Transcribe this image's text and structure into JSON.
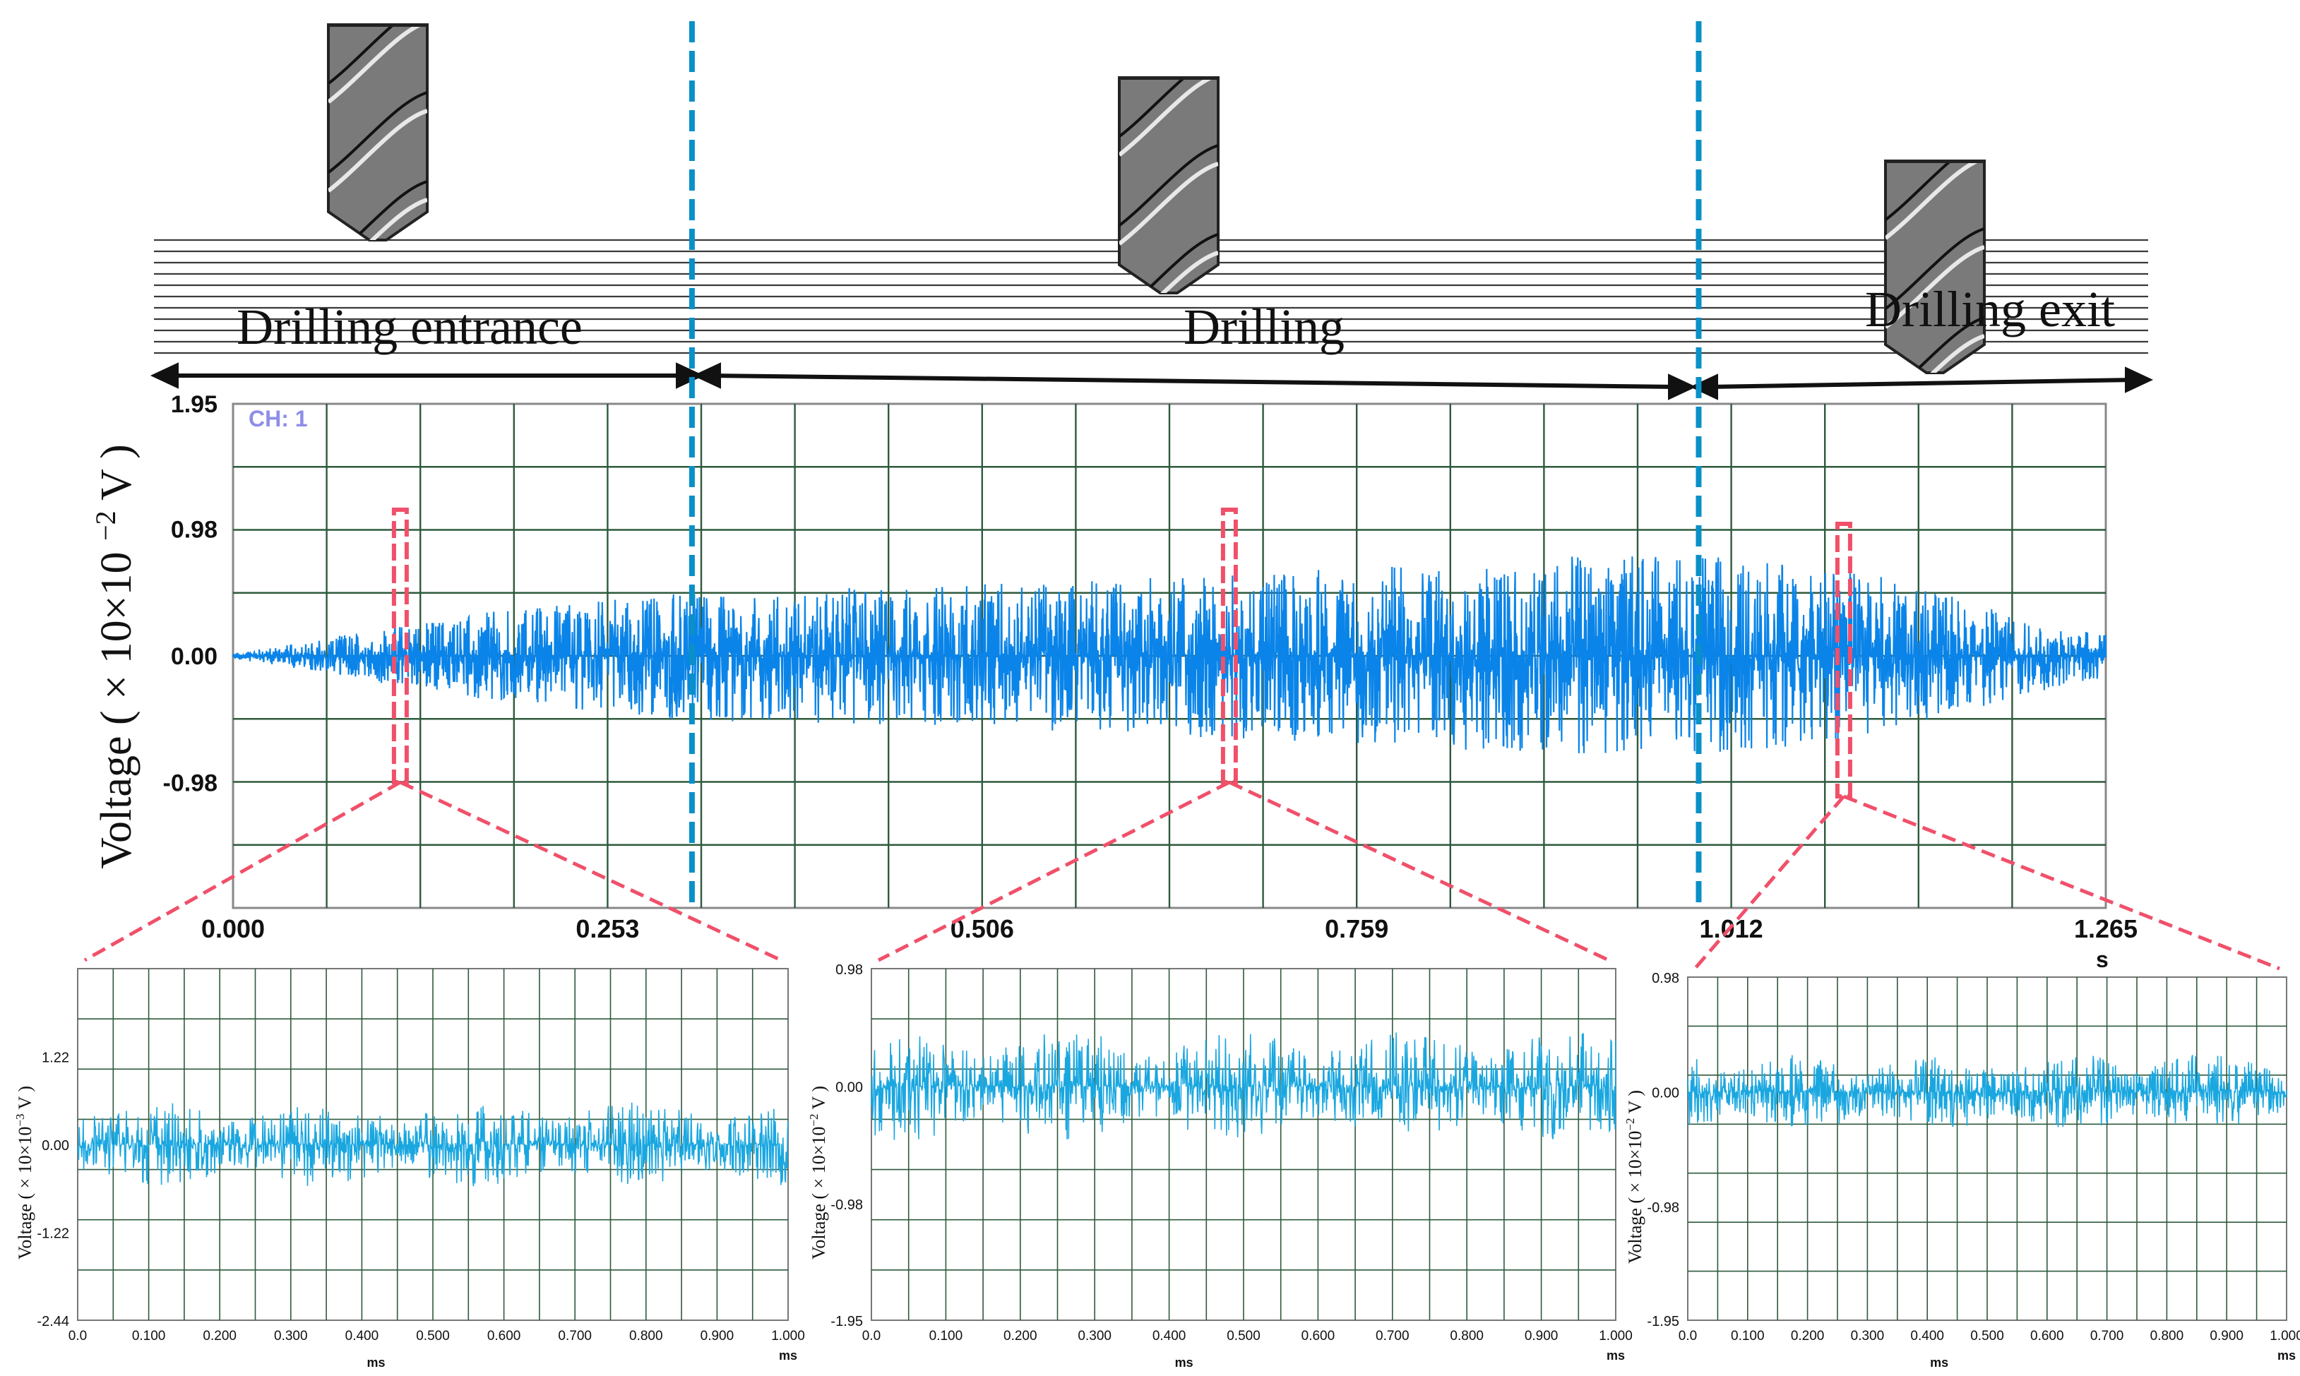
{
  "figure": {
    "stages": [
      {
        "label": "Drilling entrance",
        "x_range": [
          0.0,
          0.33
        ]
      },
      {
        "label": "Drilling",
        "x_range": [
          0.33,
          1.0
        ]
      },
      {
        "label": "Drilling exit",
        "x_range": [
          1.0,
          1.345
        ]
      }
    ],
    "colors": {
      "signal": "#0a84e8",
      "signal_light": "#1aa7e0",
      "grid": "#2e5a3c",
      "stage_divider": "#0a90c8",
      "zoom_marker": "#f0506a",
      "tool": "#7a7a7a"
    }
  },
  "chart_data": [
    {
      "type": "line",
      "name": "main",
      "channel_label": "CH: 1",
      "ylabel_prefix": "Voltage",
      "ylabel_unit": "( × 10×10",
      "ylabel_exp": "−2",
      "ylabel_suffix": " V )",
      "xlabel": "s",
      "x_ticks": [
        "0.000",
        "0.253",
        "0.506",
        "0.759",
        "1.012",
        "1.265"
      ],
      "y_ticks": [
        "1.95",
        "0.98",
        "0.00",
        "-0.98"
      ],
      "xlim": [
        0,
        1.265
      ],
      "ylim": [
        -1.95,
        1.95
      ],
      "envelope": {
        "x": [
          0,
          0.05,
          0.1,
          0.2,
          0.3,
          0.5,
          0.7,
          0.9,
          1.0,
          1.1,
          1.2,
          1.265
        ],
        "amp": [
          0.02,
          0.1,
          0.2,
          0.35,
          0.45,
          0.5,
          0.6,
          0.7,
          0.7,
          0.6,
          0.3,
          0.15
        ]
      },
      "stage_dividers": [
        0.31,
        0.99
      ],
      "zoom_windows": [
        0.113,
        0.673,
        1.088
      ]
    },
    {
      "type": "line",
      "name": "zoom-entrance",
      "ylabel_prefix": "Voltage",
      "ylabel_unit": "( × 10×10",
      "ylabel_exp": "−3",
      "ylabel_suffix": " V )",
      "xlabel": "ms",
      "x_ticks": [
        "0.0",
        "0.100",
        "0.200",
        "0.300",
        "0.400",
        "0.500",
        "0.600",
        "0.700",
        "0.800",
        "0.900",
        "1.000"
      ],
      "y_ticks": [
        "1.22",
        "0.00",
        "-1.22",
        "-2.44"
      ],
      "xlim": [
        0,
        1.0
      ],
      "ylim": [
        -2.44,
        2.44
      ],
      "amplitude": 0.45
    },
    {
      "type": "line",
      "name": "zoom-drilling",
      "ylabel_prefix": "Voltage",
      "ylabel_unit": "( × 10×10",
      "ylabel_exp": "−2",
      "ylabel_suffix": " V )",
      "xlabel": "ms",
      "x_ticks": [
        "0.0",
        "0.100",
        "0.200",
        "0.300",
        "0.400",
        "0.500",
        "0.600",
        "0.700",
        "0.800",
        "0.900",
        "1.000"
      ],
      "y_ticks": [
        "0.98",
        "0.00",
        "-0.98",
        "-1.95"
      ],
      "xlim": [
        0,
        1.0
      ],
      "ylim": [
        -1.95,
        0.98
      ],
      "amplitude": 0.35
    },
    {
      "type": "line",
      "name": "zoom-exit",
      "ylabel_prefix": "Voltage",
      "ylabel_unit": "( × 10×10",
      "ylabel_exp": "−2",
      "ylabel_suffix": " V )",
      "xlabel": "ms",
      "x_ticks": [
        "0.0",
        "0.100",
        "0.200",
        "0.300",
        "0.400",
        "0.500",
        "0.600",
        "0.700",
        "0.800",
        "0.900",
        "1.000"
      ],
      "y_ticks": [
        "0.98",
        "0.00",
        "-0.98",
        "-1.95"
      ],
      "xlim": [
        0,
        1.0
      ],
      "ylim": [
        -1.95,
        0.98
      ],
      "amplitude": 0.25
    }
  ]
}
